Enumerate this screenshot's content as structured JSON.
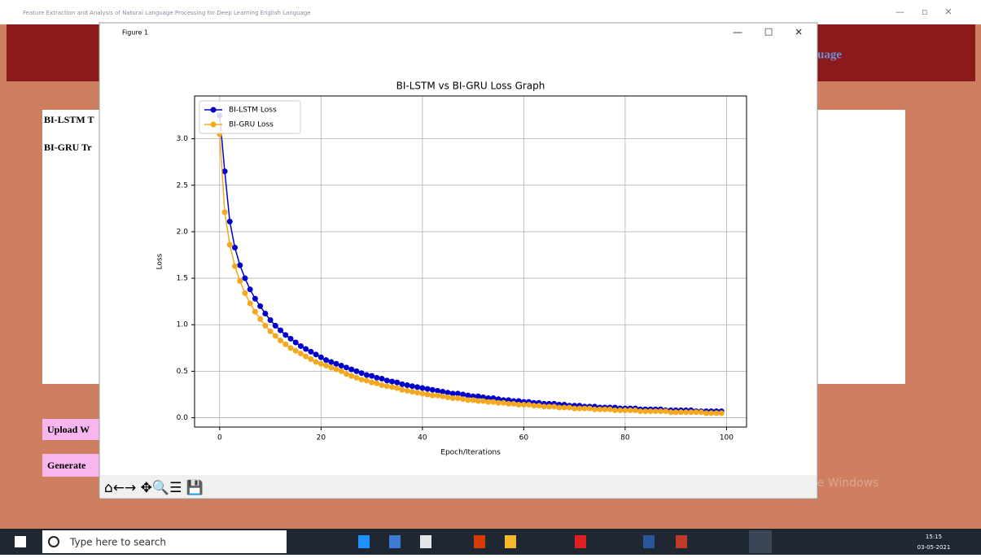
{
  "window": {
    "title": "Feature Extraction and Analysis of Natural Language Processing for Deep Learning English Language",
    "header": "uage"
  },
  "app": {
    "lines": [
      "BI-LSTM T",
      "BI-GRU Tr"
    ],
    "buttons": [
      "Upload W",
      "Generate"
    ],
    "watermark": "Activate Windows"
  },
  "figure": {
    "title": "Figure 1"
  },
  "taskbar": {
    "search": "Type here to search",
    "time": "15:15",
    "date": "03-05-2021"
  },
  "chart_data": {
    "type": "line",
    "title": "BI-LSTM vs BI-GRU Loss Graph",
    "x_label": "Epoch/Iterations",
    "y_label": "Loss",
    "x": [
      0,
      1,
      2,
      3,
      4,
      5,
      6,
      7,
      8,
      9,
      10,
      11,
      12,
      13,
      14,
      15,
      16,
      17,
      18,
      19,
      20,
      21,
      22,
      23,
      24,
      25,
      26,
      27,
      28,
      29,
      30,
      31,
      32,
      33,
      34,
      35,
      36,
      37,
      38,
      39,
      40,
      41,
      42,
      43,
      44,
      45,
      46,
      47,
      48,
      49,
      50,
      51,
      52,
      53,
      54,
      55,
      56,
      57,
      58,
      59,
      60,
      61,
      62,
      63,
      64,
      65,
      66,
      67,
      68,
      69,
      70,
      71,
      72,
      73,
      74,
      75,
      76,
      77,
      78,
      79,
      80,
      81,
      82,
      83,
      84,
      85,
      86,
      87,
      88,
      89,
      90,
      91,
      92,
      93,
      94,
      95,
      96,
      97,
      98,
      99
    ],
    "series": [
      {
        "name": "BI-LSTM Loss",
        "color": "#0000cd",
        "values": [
          3.25,
          2.65,
          2.11,
          1.83,
          1.64,
          1.5,
          1.38,
          1.28,
          1.2,
          1.12,
          1.05,
          0.99,
          0.94,
          0.89,
          0.85,
          0.81,
          0.77,
          0.74,
          0.71,
          0.68,
          0.65,
          0.62,
          0.6,
          0.58,
          0.56,
          0.54,
          0.52,
          0.5,
          0.48,
          0.46,
          0.45,
          0.43,
          0.42,
          0.4,
          0.39,
          0.38,
          0.36,
          0.35,
          0.34,
          0.33,
          0.32,
          0.31,
          0.3,
          0.29,
          0.28,
          0.27,
          0.26,
          0.26,
          0.25,
          0.24,
          0.23,
          0.23,
          0.22,
          0.21,
          0.21,
          0.2,
          0.19,
          0.19,
          0.18,
          0.18,
          0.17,
          0.17,
          0.16,
          0.16,
          0.15,
          0.15,
          0.15,
          0.14,
          0.14,
          0.13,
          0.13,
          0.13,
          0.12,
          0.12,
          0.12,
          0.11,
          0.11,
          0.11,
          0.11,
          0.1,
          0.1,
          0.1,
          0.1,
          0.09,
          0.09,
          0.09,
          0.09,
          0.09,
          0.08,
          0.08,
          0.08,
          0.08,
          0.08,
          0.08,
          0.07,
          0.07,
          0.07,
          0.07,
          0.07,
          0.07
        ]
      },
      {
        "name": "BI-GRU Loss",
        "color": "#f4a81d",
        "values": [
          3.05,
          2.21,
          1.86,
          1.63,
          1.47,
          1.34,
          1.23,
          1.14,
          1.06,
          0.99,
          0.93,
          0.88,
          0.83,
          0.79,
          0.75,
          0.72,
          0.69,
          0.66,
          0.63,
          0.6,
          0.58,
          0.56,
          0.54,
          0.52,
          0.5,
          0.47,
          0.45,
          0.43,
          0.41,
          0.4,
          0.38,
          0.37,
          0.35,
          0.34,
          0.33,
          0.32,
          0.3,
          0.29,
          0.28,
          0.27,
          0.26,
          0.25,
          0.24,
          0.24,
          0.23,
          0.22,
          0.21,
          0.21,
          0.2,
          0.19,
          0.19,
          0.18,
          0.18,
          0.17,
          0.17,
          0.16,
          0.16,
          0.15,
          0.15,
          0.14,
          0.14,
          0.14,
          0.13,
          0.13,
          0.12,
          0.12,
          0.12,
          0.11,
          0.11,
          0.11,
          0.1,
          0.1,
          0.1,
          0.1,
          0.09,
          0.09,
          0.09,
          0.09,
          0.08,
          0.08,
          0.08,
          0.08,
          0.08,
          0.07,
          0.07,
          0.07,
          0.07,
          0.07,
          0.07,
          0.06,
          0.06,
          0.06,
          0.06,
          0.06,
          0.06,
          0.06,
          0.05,
          0.05,
          0.05,
          0.05
        ]
      }
    ],
    "xlim": [
      -4.95,
      103.95
    ],
    "xticks": [
      0,
      20,
      40,
      60,
      80,
      100
    ],
    "ylim": [
      -0.1,
      3.46
    ],
    "yticks": [
      {
        "value": 0,
        "label": "0.0"
      },
      0.5,
      {
        "value": 1,
        "label": "1.0"
      },
      1.5,
      {
        "value": 2,
        "label": "2.0"
      },
      2.5,
      {
        "value": 3,
        "label": "3.0"
      }
    ],
    "grid": true,
    "legend": "upper left"
  }
}
